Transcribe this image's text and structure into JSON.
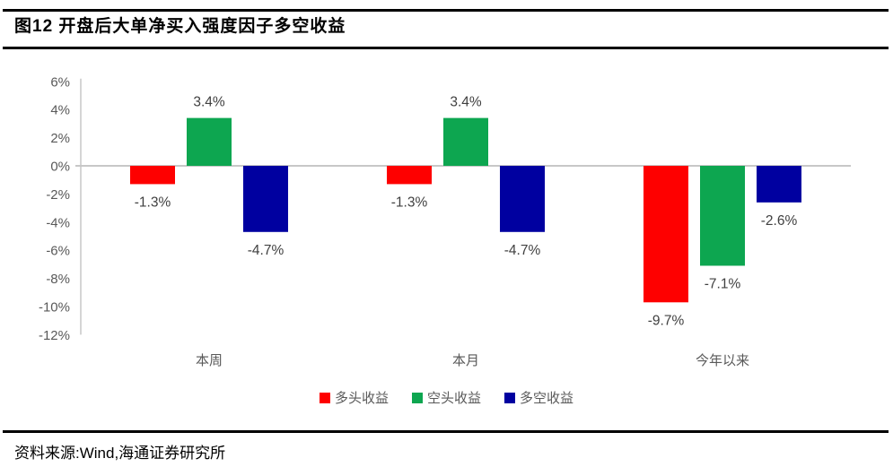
{
  "figure": {
    "title": "图12 开盘后大单净买入强度因子多空收益",
    "source": "资料来源:Wind,海通证券研究所"
  },
  "chart_data": {
    "type": "bar",
    "title": "开盘后大单净买入强度因子多空收益",
    "categories": [
      "本周",
      "本月",
      "今年以来"
    ],
    "series": [
      {
        "name": "多头收益",
        "color": "#FE0000",
        "values": [
          -1.3,
          -1.3,
          -9.7
        ],
        "labels": [
          "-1.3%",
          "-1.3%",
          "-9.7%"
        ]
      },
      {
        "name": "空头收益",
        "color": "#0DA650",
        "values": [
          3.4,
          3.4,
          -7.1
        ],
        "labels": [
          "3.4%",
          "3.4%",
          "-7.1%"
        ]
      },
      {
        "name": "多空收益",
        "color": "#0000A0",
        "values": [
          -4.7,
          -4.7,
          -2.6
        ],
        "labels": [
          "-4.7%",
          "-4.7%",
          "-2.6%"
        ]
      }
    ],
    "y_axis": {
      "min": -12,
      "max": 6,
      "step": 2,
      "tick_labels": [
        "6%",
        "4%",
        "2%",
        "0%",
        "-2%",
        "-4%",
        "-6%",
        "-8%",
        "-10%",
        "-12%"
      ]
    },
    "xlabel": "",
    "ylabel": "",
    "grid": "zero-line-only",
    "legend_position": "bottom-center",
    "style_colors": {
      "axis_line": "#C7C7C7",
      "tick_text": "#595959",
      "category_text": "#595959",
      "data_label_text": "#404040",
      "legend_text": "#595959"
    }
  }
}
